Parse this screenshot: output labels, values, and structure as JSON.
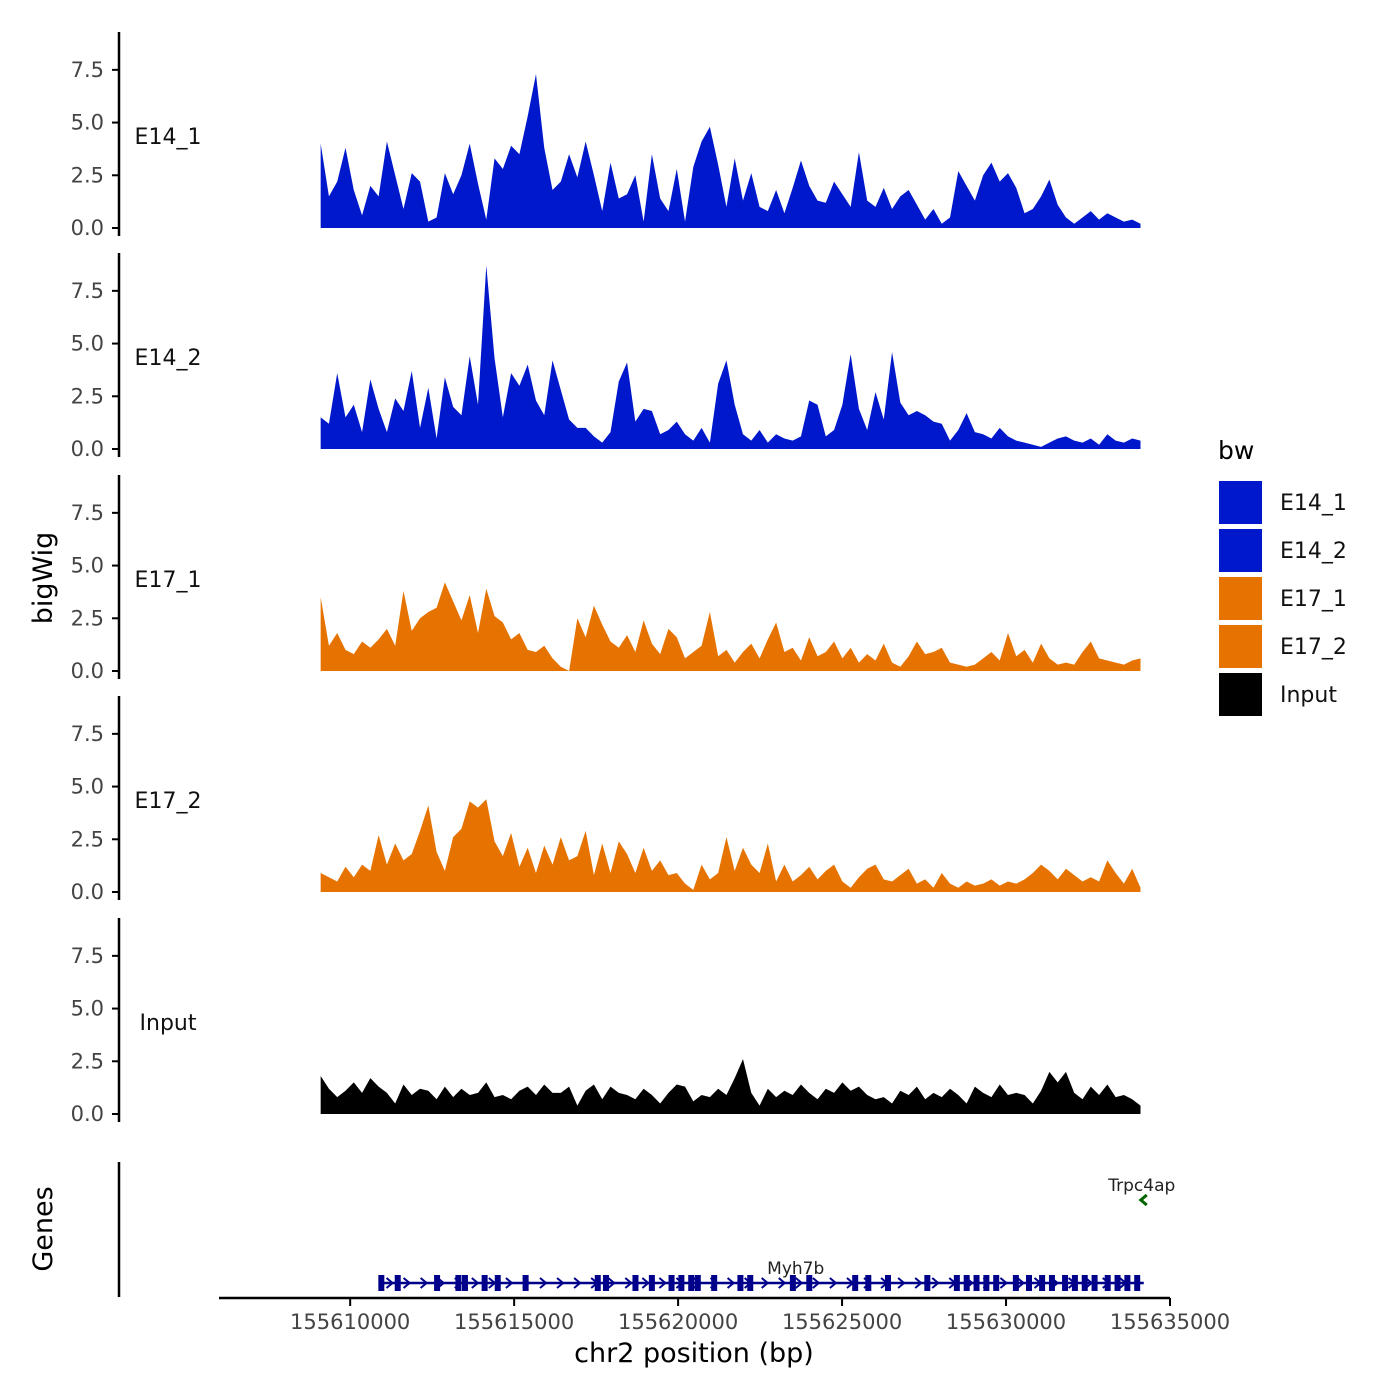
{
  "chart_data": {
    "type": "area",
    "ylabel": "bigWig",
    "xlabel": "chr2 position (bp)",
    "ylim": [
      0,
      9.2
    ],
    "yticks": [
      "0.0",
      "2.5",
      "5.0",
      "7.5"
    ],
    "ytick_values": [
      0,
      2.5,
      5,
      7.5
    ],
    "xlim": [
      155606000,
      155635000
    ],
    "xticks": [
      "155610000",
      "155615000",
      "155620000",
      "155625000",
      "155630000",
      "155635000"
    ],
    "xtick_values": [
      155610000,
      155615000,
      155620000,
      155625000,
      155630000,
      155635000
    ],
    "x_start": 155609100,
    "x_end": 155634100,
    "legend": {
      "title": "bw",
      "position": "right",
      "entries": [
        {
          "label": "E14_1",
          "color": "#0018CC"
        },
        {
          "label": "E14_2",
          "color": "#0018CC"
        },
        {
          "label": "E17_1",
          "color": "#E67300"
        },
        {
          "label": "E17_2",
          "color": "#E67300"
        },
        {
          "label": "Input",
          "color": "#000000"
        }
      ]
    },
    "series": [
      {
        "name": "E14_1",
        "color": "#0018CC",
        "values": [
          4.0,
          1.5,
          2.2,
          3.8,
          1.8,
          0.6,
          2.0,
          1.5,
          4.1,
          2.5,
          0.9,
          2.6,
          2.2,
          0.3,
          0.5,
          2.6,
          1.6,
          2.5,
          4.0,
          2.1,
          0.4,
          3.3,
          2.8,
          3.9,
          3.5,
          5.3,
          7.3,
          3.8,
          1.8,
          2.2,
          3.5,
          2.4,
          4.1,
          2.5,
          0.8,
          3.1,
          1.4,
          1.6,
          2.5,
          0.3,
          3.5,
          1.4,
          0.8,
          2.8,
          0.3,
          2.9,
          4.1,
          4.8,
          3.0,
          1.0,
          3.3,
          1.3,
          2.6,
          1.0,
          0.8,
          1.8,
          0.7,
          1.9,
          3.2,
          2.0,
          1.3,
          1.2,
          2.2,
          1.6,
          1.0,
          3.6,
          1.3,
          1.0,
          1.9,
          0.9,
          1.5,
          1.8,
          1.1,
          0.4,
          0.9,
          0.2,
          0.5,
          2.7,
          2.0,
          1.3,
          2.5,
          3.1,
          2.2,
          2.6,
          1.9,
          0.7,
          0.9,
          1.5,
          2.3,
          1.1,
          0.5,
          0.2,
          0.5,
          0.8,
          0.4,
          0.7,
          0.5,
          0.3,
          0.4,
          0.2
        ]
      },
      {
        "name": "E14_2",
        "color": "#0018CC",
        "values": [
          1.5,
          1.2,
          3.6,
          1.5,
          2.1,
          0.8,
          3.3,
          1.9,
          0.8,
          2.4,
          1.8,
          3.7,
          1.0,
          2.9,
          0.5,
          3.4,
          2.0,
          1.6,
          4.4,
          2.1,
          8.7,
          4.3,
          1.5,
          3.6,
          3.0,
          4.0,
          2.3,
          1.6,
          4.2,
          2.8,
          1.4,
          1.0,
          1.0,
          0.6,
          0.3,
          0.8,
          3.2,
          4.1,
          1.3,
          1.9,
          1.8,
          0.7,
          0.9,
          1.3,
          0.7,
          0.4,
          1.0,
          0.3,
          3.1,
          4.2,
          2.1,
          0.7,
          0.4,
          0.9,
          0.3,
          0.7,
          0.5,
          0.4,
          0.6,
          2.3,
          2.1,
          0.6,
          0.9,
          2.1,
          4.5,
          1.9,
          0.9,
          2.7,
          1.4,
          4.6,
          2.2,
          1.6,
          1.8,
          1.6,
          1.3,
          1.2,
          0.4,
          0.9,
          1.7,
          0.8,
          0.7,
          0.5,
          1.0,
          0.6,
          0.4,
          0.3,
          0.2,
          0.1,
          0.3,
          0.5,
          0.6,
          0.4,
          0.3,
          0.5,
          0.2,
          0.7,
          0.4,
          0.3,
          0.5,
          0.4
        ]
      },
      {
        "name": "E17_1",
        "color": "#E67300",
        "values": [
          3.5,
          1.2,
          1.8,
          1.0,
          0.8,
          1.4,
          1.1,
          1.5,
          2.0,
          1.2,
          3.8,
          1.9,
          2.5,
          2.8,
          3.0,
          4.2,
          3.3,
          2.4,
          3.6,
          1.8,
          3.9,
          2.6,
          2.3,
          1.5,
          1.8,
          1.0,
          0.9,
          1.2,
          0.6,
          0.2,
          0.0,
          2.5,
          1.6,
          3.1,
          2.2,
          1.4,
          1.1,
          1.7,
          0.9,
          2.4,
          1.3,
          0.8,
          2.0,
          1.6,
          0.6,
          0.9,
          1.2,
          2.8,
          0.7,
          1.0,
          0.4,
          0.9,
          1.3,
          0.6,
          1.5,
          2.3,
          0.9,
          1.1,
          0.5,
          1.6,
          0.7,
          0.9,
          1.4,
          0.6,
          1.1,
          0.4,
          0.8,
          0.5,
          1.3,
          0.4,
          0.2,
          0.7,
          1.4,
          0.8,
          0.9,
          1.1,
          0.4,
          0.3,
          0.2,
          0.3,
          0.6,
          0.9,
          0.5,
          1.8,
          0.7,
          1.0,
          0.4,
          1.3,
          0.6,
          0.3,
          0.4,
          0.3,
          0.9,
          1.4,
          0.6,
          0.5,
          0.4,
          0.3,
          0.5,
          0.6
        ]
      },
      {
        "name": "E17_2",
        "color": "#E67300",
        "values": [
          0.9,
          0.7,
          0.5,
          1.2,
          0.7,
          1.3,
          1.0,
          2.7,
          1.3,
          2.3,
          1.5,
          1.8,
          2.9,
          4.1,
          1.9,
          1.0,
          2.6,
          3.0,
          4.3,
          4.0,
          4.4,
          2.4,
          1.7,
          2.8,
          1.2,
          2.1,
          0.9,
          2.2,
          1.3,
          2.6,
          1.5,
          1.7,
          2.9,
          0.8,
          2.3,
          0.9,
          2.4,
          1.8,
          0.9,
          2.1,
          1.0,
          1.5,
          0.8,
          0.9,
          0.4,
          0.1,
          1.3,
          0.6,
          0.9,
          2.6,
          1.0,
          2.1,
          1.3,
          0.9,
          2.3,
          0.5,
          1.3,
          0.5,
          0.8,
          1.2,
          0.6,
          1.0,
          1.3,
          0.5,
          0.2,
          0.7,
          1.1,
          1.3,
          0.6,
          0.5,
          0.8,
          1.1,
          0.4,
          0.6,
          0.2,
          0.9,
          0.4,
          0.2,
          0.5,
          0.3,
          0.4,
          0.6,
          0.3,
          0.5,
          0.4,
          0.6,
          0.9,
          1.3,
          1.0,
          0.6,
          1.1,
          0.8,
          0.5,
          0.7,
          0.5,
          1.5,
          0.9,
          0.4,
          1.1,
          0.2
        ]
      },
      {
        "name": "Input",
        "color": "#000000",
        "values": [
          1.8,
          1.2,
          0.8,
          1.1,
          1.5,
          1.0,
          1.7,
          1.3,
          1.0,
          0.5,
          1.4,
          0.9,
          1.2,
          1.1,
          0.7,
          1.3,
          0.8,
          1.2,
          0.9,
          1.0,
          1.5,
          0.8,
          0.9,
          0.7,
          1.1,
          1.3,
          0.9,
          1.4,
          1.0,
          1.0,
          1.3,
          0.4,
          1.1,
          1.4,
          0.7,
          1.3,
          1.0,
          0.9,
          0.7,
          1.2,
          0.9,
          0.5,
          1.0,
          1.4,
          1.3,
          0.6,
          0.9,
          0.8,
          1.2,
          0.9,
          1.7,
          2.6,
          1.0,
          0.4,
          1.2,
          0.8,
          1.1,
          0.9,
          1.4,
          1.0,
          0.7,
          1.2,
          1.0,
          1.5,
          1.1,
          1.3,
          0.9,
          0.7,
          0.8,
          0.5,
          1.1,
          0.9,
          1.3,
          0.7,
          1.0,
          0.8,
          1.2,
          0.9,
          0.5,
          1.3,
          1.0,
          0.8,
          1.4,
          0.9,
          1.0,
          0.9,
          0.5,
          1.1,
          2.0,
          1.5,
          2.0,
          1.0,
          0.7,
          1.3,
          0.9,
          1.4,
          0.8,
          0.9,
          0.7,
          0.4
        ]
      }
    ],
    "genes": {
      "ylabel": "Genes",
      "items": [
        {
          "name": "Myh7b",
          "start": 155610900,
          "end": 155634200,
          "strand": "+",
          "color": "#00008B",
          "exons": [
            155610950,
            155611450,
            155612650,
            155613300,
            155613500,
            155614100,
            155614500,
            155615350,
            155617550,
            155617800,
            155618700,
            155619200,
            155619800,
            155620100,
            155620400,
            155620600,
            155621100,
            155621900,
            155622200,
            155623500,
            155624000,
            155625400,
            155625800,
            155626400,
            155627600,
            155628500,
            155628800,
            155629100,
            155629400,
            155629700,
            155630300,
            155630700,
            155631100,
            155631400,
            155631800,
            155632100,
            155632400,
            155632700,
            155633100,
            155633400,
            155633700,
            155634000
          ]
        },
        {
          "name": "Trpc4ap",
          "start": 155634200,
          "end": 155634300,
          "strand": "-",
          "color": "#006400",
          "exons": []
        }
      ]
    }
  }
}
